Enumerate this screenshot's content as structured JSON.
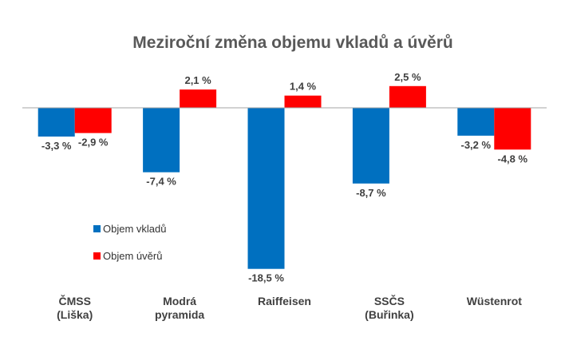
{
  "chart_data": {
    "type": "bar",
    "title": "Meziroční změna objemu vkladů a úvěrů",
    "xlabel": "",
    "ylabel": "",
    "categories": [
      [
        "ČMSS",
        "(Liška)"
      ],
      [
        "Modrá",
        "pyramida"
      ],
      [
        "Raiffeisen"
      ],
      [
        "SSČS",
        "(Buřinka)"
      ],
      [
        "Wüstenrot"
      ]
    ],
    "series": [
      {
        "name": "Objem vkladů",
        "color": "#0070c0",
        "values": [
          -3.3,
          -7.4,
          -18.5,
          -8.7,
          -3.2
        ],
        "labels": [
          "-3,3 %",
          "-7,4 %",
          "-18,5 %",
          "-8,7 %",
          "-3,2 %"
        ]
      },
      {
        "name": "Objem úvěrů",
        "color": "#ff0000",
        "values": [
          -2.9,
          2.1,
          1.4,
          2.5,
          -4.8
        ],
        "labels": [
          "-2,9 %",
          "2,1 %",
          "1,4 %",
          "2,5 %",
          "-4,8 %"
        ]
      }
    ],
    "ylim": [
      -20,
      3
    ],
    "grid": false,
    "legend_position": "inside-left"
  }
}
